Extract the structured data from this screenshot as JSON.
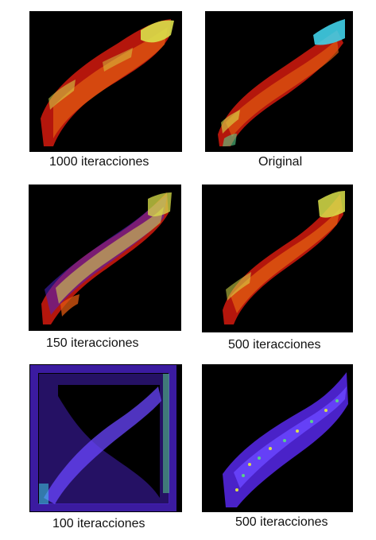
{
  "figure": {
    "panels": [
      {
        "id": "p1",
        "caption": "1000 iteracciones",
        "rendering": "red-orange-with-yellow-green-highlights"
      },
      {
        "id": "p2",
        "caption": "Original",
        "rendering": "red-orange-with-cyan-highlights"
      },
      {
        "id": "p3",
        "caption": "150 iteracciones",
        "rendering": "noisy-yellow-blue-red"
      },
      {
        "id": "p4",
        "caption": "500 iteracciones",
        "rendering": "red-orange-with-yellow-green-highlights"
      },
      {
        "id": "p5",
        "caption": "100 iteracciones",
        "rendering": "purple-blob-in-frame"
      },
      {
        "id": "p6",
        "caption": "500 iteracciones",
        "rendering": "purple-with-speckles"
      }
    ],
    "colors": {
      "background": "#ffffff",
      "panel_bg": "#000000",
      "red": "#b4160c",
      "orange": "#e05a10",
      "yellow": "#d9e04a",
      "cyan": "#40d0e8",
      "purple": "#4a22c8",
      "purple_light": "#6a45ff",
      "green": "#57d08a"
    }
  }
}
